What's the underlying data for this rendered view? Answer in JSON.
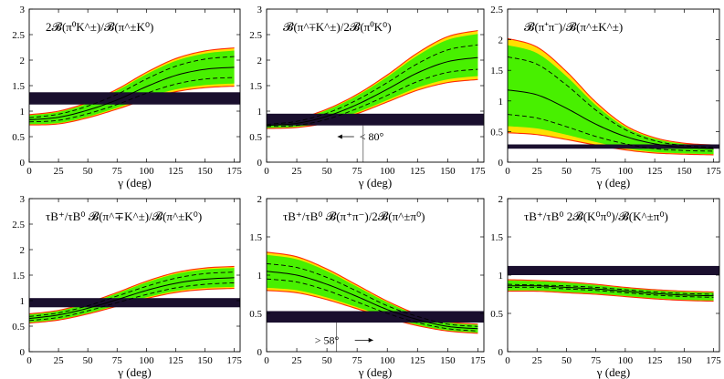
{
  "figure": {
    "caption_hidden": ""
  },
  "colors": {
    "outer_band": "#ffe000",
    "outer_edge": "#ff2a00",
    "inner_band": "#48f000",
    "measurement": "#1a0f2e",
    "curve": "#000000"
  },
  "chart_data": [
    {
      "type": "line",
      "title": "2𝓑(π⁰K^±)/𝓑(π^±K⁰)",
      "xlabel": "γ (deg)",
      "xlim": [
        0,
        180
      ],
      "xticks": [
        0,
        25,
        50,
        75,
        100,
        125,
        150,
        175
      ],
      "ylim": [
        0,
        3
      ],
      "yticks": [
        0,
        0.5,
        1,
        1.5,
        2,
        2.5,
        3
      ],
      "x": [
        0,
        25,
        50,
        75,
        100,
        125,
        150,
        175
      ],
      "series": [
        {
          "name": "central",
          "values": [
            0.83,
            0.88,
            1.02,
            1.22,
            1.48,
            1.7,
            1.82,
            1.86
          ]
        },
        {
          "name": "inner-upper",
          "values": [
            0.87,
            0.94,
            1.1,
            1.33,
            1.63,
            1.88,
            2.02,
            2.07
          ]
        },
        {
          "name": "inner-lower",
          "values": [
            0.79,
            0.82,
            0.95,
            1.13,
            1.35,
            1.53,
            1.63,
            1.66
          ]
        },
        {
          "name": "band-upper",
          "values": [
            0.93,
            1.0,
            1.17,
            1.43,
            1.76,
            2.03,
            2.18,
            2.24
          ]
        },
        {
          "name": "band-lower",
          "values": [
            0.73,
            0.75,
            0.87,
            1.04,
            1.23,
            1.38,
            1.46,
            1.49
          ]
        }
      ],
      "measurement": {
        "low": 1.13,
        "high": 1.37
      }
    },
    {
      "type": "line",
      "title": "𝓑(π^∓K^±)/2𝓑(π⁰K⁰)",
      "xlabel": "γ (deg)",
      "xlim": [
        0,
        180
      ],
      "xticks": [
        0,
        25,
        50,
        75,
        100,
        125,
        150,
        175
      ],
      "ylim": [
        0,
        3
      ],
      "yticks": [
        0,
        0.5,
        1,
        1.5,
        2,
        2.5,
        3
      ],
      "x": [
        0,
        25,
        50,
        75,
        100,
        125,
        150,
        175
      ],
      "series": [
        {
          "name": "central",
          "values": [
            0.72,
            0.76,
            0.9,
            1.13,
            1.43,
            1.75,
            1.97,
            2.05
          ]
        },
        {
          "name": "inner-upper",
          "values": [
            0.74,
            0.8,
            0.96,
            1.22,
            1.56,
            1.93,
            2.2,
            2.3
          ]
        },
        {
          "name": "inner-lower",
          "values": [
            0.7,
            0.72,
            0.84,
            1.05,
            1.31,
            1.58,
            1.76,
            1.82
          ]
        },
        {
          "name": "band-upper",
          "values": [
            0.78,
            0.85,
            1.04,
            1.33,
            1.71,
            2.14,
            2.46,
            2.58
          ]
        },
        {
          "name": "band-lower",
          "values": [
            0.66,
            0.68,
            0.77,
            0.95,
            1.18,
            1.41,
            1.56,
            1.62
          ]
        }
      ],
      "measurement": {
        "low": 0.72,
        "high": 0.95
      },
      "annotation": {
        "text": "< 80°",
        "x": 80,
        "y": 0.5
      }
    },
    {
      "type": "line",
      "title": "𝓑(π⁺π⁻)/𝓑(π^±K^±)",
      "xlabel": "γ (deg)",
      "xlim": [
        0,
        180
      ],
      "xticks": [
        0,
        25,
        50,
        75,
        100,
        125,
        150,
        175
      ],
      "ylim": [
        0,
        2.5
      ],
      "yticks": [
        0,
        0.5,
        1,
        1.5,
        2,
        2.5
      ],
      "x": [
        0,
        25,
        50,
        75,
        100,
        125,
        150,
        175
      ],
      "series": [
        {
          "name": "central",
          "values": [
            1.18,
            1.1,
            0.88,
            0.62,
            0.42,
            0.3,
            0.24,
            0.22
          ]
        },
        {
          "name": "inner-upper",
          "values": [
            1.72,
            1.6,
            1.26,
            0.85,
            0.53,
            0.35,
            0.27,
            0.24
          ]
        },
        {
          "name": "inner-lower",
          "values": [
            0.78,
            0.72,
            0.58,
            0.42,
            0.3,
            0.22,
            0.19,
            0.18
          ]
        },
        {
          "name": "band-upper",
          "values": [
            2.02,
            1.88,
            1.48,
            0.98,
            0.6,
            0.4,
            0.31,
            0.28
          ]
        },
        {
          "name": "band-lower",
          "values": [
            0.48,
            0.45,
            0.37,
            0.28,
            0.2,
            0.15,
            0.13,
            0.12
          ]
        }
      ],
      "measurement": {
        "low": 0.22,
        "high": 0.29
      }
    },
    {
      "type": "line",
      "title": "τB⁺/τB⁰ 𝓑(π^∓K^±)/𝓑(π^±K⁰)",
      "xlabel": "γ (deg)",
      "xlim": [
        0,
        180
      ],
      "xticks": [
        0,
        25,
        50,
        75,
        100,
        125,
        150,
        175
      ],
      "ylim": [
        0,
        3
      ],
      "yticks": [
        0,
        0.5,
        1,
        1.5,
        2,
        2.5,
        3
      ],
      "x": [
        0,
        25,
        50,
        75,
        100,
        125,
        150,
        175
      ],
      "series": [
        {
          "name": "central",
          "values": [
            0.65,
            0.72,
            0.85,
            1.02,
            1.2,
            1.34,
            1.42,
            1.45
          ]
        },
        {
          "name": "inner-upper",
          "values": [
            0.69,
            0.76,
            0.9,
            1.09,
            1.28,
            1.44,
            1.53,
            1.56
          ]
        },
        {
          "name": "inner-lower",
          "values": [
            0.61,
            0.67,
            0.8,
            0.96,
            1.12,
            1.25,
            1.32,
            1.35
          ]
        },
        {
          "name": "band-upper",
          "values": [
            0.74,
            0.81,
            0.96,
            1.16,
            1.38,
            1.55,
            1.64,
            1.67
          ]
        },
        {
          "name": "band-lower",
          "values": [
            0.56,
            0.62,
            0.74,
            0.89,
            1.04,
            1.16,
            1.22,
            1.24
          ]
        }
      ],
      "measurement": {
        "low": 0.87,
        "high": 1.05
      }
    },
    {
      "type": "line",
      "title": "τB⁺/τB⁰ 𝓑(π⁺π⁻)/2𝓑(π^±π⁰)",
      "xlabel": "γ (deg)",
      "xlim": [
        0,
        180
      ],
      "xticks": [
        0,
        25,
        50,
        75,
        100,
        125,
        150,
        175
      ],
      "ylim": [
        0,
        2
      ],
      "yticks": [
        0,
        0.5,
        1,
        1.5,
        2
      ],
      "x": [
        0,
        25,
        50,
        75,
        100,
        125,
        150,
        175
      ],
      "series": [
        {
          "name": "central",
          "values": [
            1.05,
            1.0,
            0.88,
            0.72,
            0.55,
            0.42,
            0.33,
            0.3
          ]
        },
        {
          "name": "inner-upper",
          "values": [
            1.15,
            1.1,
            0.97,
            0.79,
            0.6,
            0.46,
            0.36,
            0.33
          ]
        },
        {
          "name": "inner-lower",
          "values": [
            0.95,
            0.91,
            0.8,
            0.65,
            0.5,
            0.38,
            0.3,
            0.27
          ]
        },
        {
          "name": "band-upper",
          "values": [
            1.3,
            1.24,
            1.08,
            0.87,
            0.66,
            0.49,
            0.39,
            0.36
          ]
        },
        {
          "name": "band-lower",
          "values": [
            0.8,
            0.77,
            0.68,
            0.56,
            0.44,
            0.34,
            0.27,
            0.24
          ]
        }
      ],
      "measurement": {
        "low": 0.38,
        "high": 0.53
      },
      "annotation": {
        "text": "> 58°",
        "x": 58,
        "y": 0.15
      }
    },
    {
      "type": "line",
      "title": "τB⁺/τB⁰ 2𝓑(K⁰π⁰)/𝓑(K^±π⁰)",
      "xlabel": "γ (deg)",
      "xlim": [
        0,
        180
      ],
      "xticks": [
        0,
        25,
        50,
        75,
        100,
        125,
        150,
        175
      ],
      "ylim": [
        0,
        2
      ],
      "yticks": [
        0,
        0.5,
        1,
        1.5,
        2
      ],
      "x": [
        0,
        25,
        50,
        75,
        100,
        125,
        150,
        175
      ],
      "series": [
        {
          "name": "central",
          "values": [
            0.86,
            0.86,
            0.84,
            0.82,
            0.79,
            0.76,
            0.74,
            0.73
          ]
        },
        {
          "name": "inner-upper",
          "values": [
            0.88,
            0.87,
            0.86,
            0.84,
            0.81,
            0.78,
            0.76,
            0.75
          ]
        },
        {
          "name": "inner-lower",
          "values": [
            0.84,
            0.84,
            0.82,
            0.8,
            0.77,
            0.74,
            0.72,
            0.71
          ]
        },
        {
          "name": "band-upper",
          "values": [
            0.94,
            0.93,
            0.91,
            0.88,
            0.84,
            0.81,
            0.79,
            0.78
          ]
        },
        {
          "name": "band-lower",
          "values": [
            0.79,
            0.79,
            0.77,
            0.75,
            0.72,
            0.69,
            0.67,
            0.66
          ]
        }
      ],
      "measurement": {
        "low": 1.0,
        "high": 1.12
      }
    }
  ]
}
